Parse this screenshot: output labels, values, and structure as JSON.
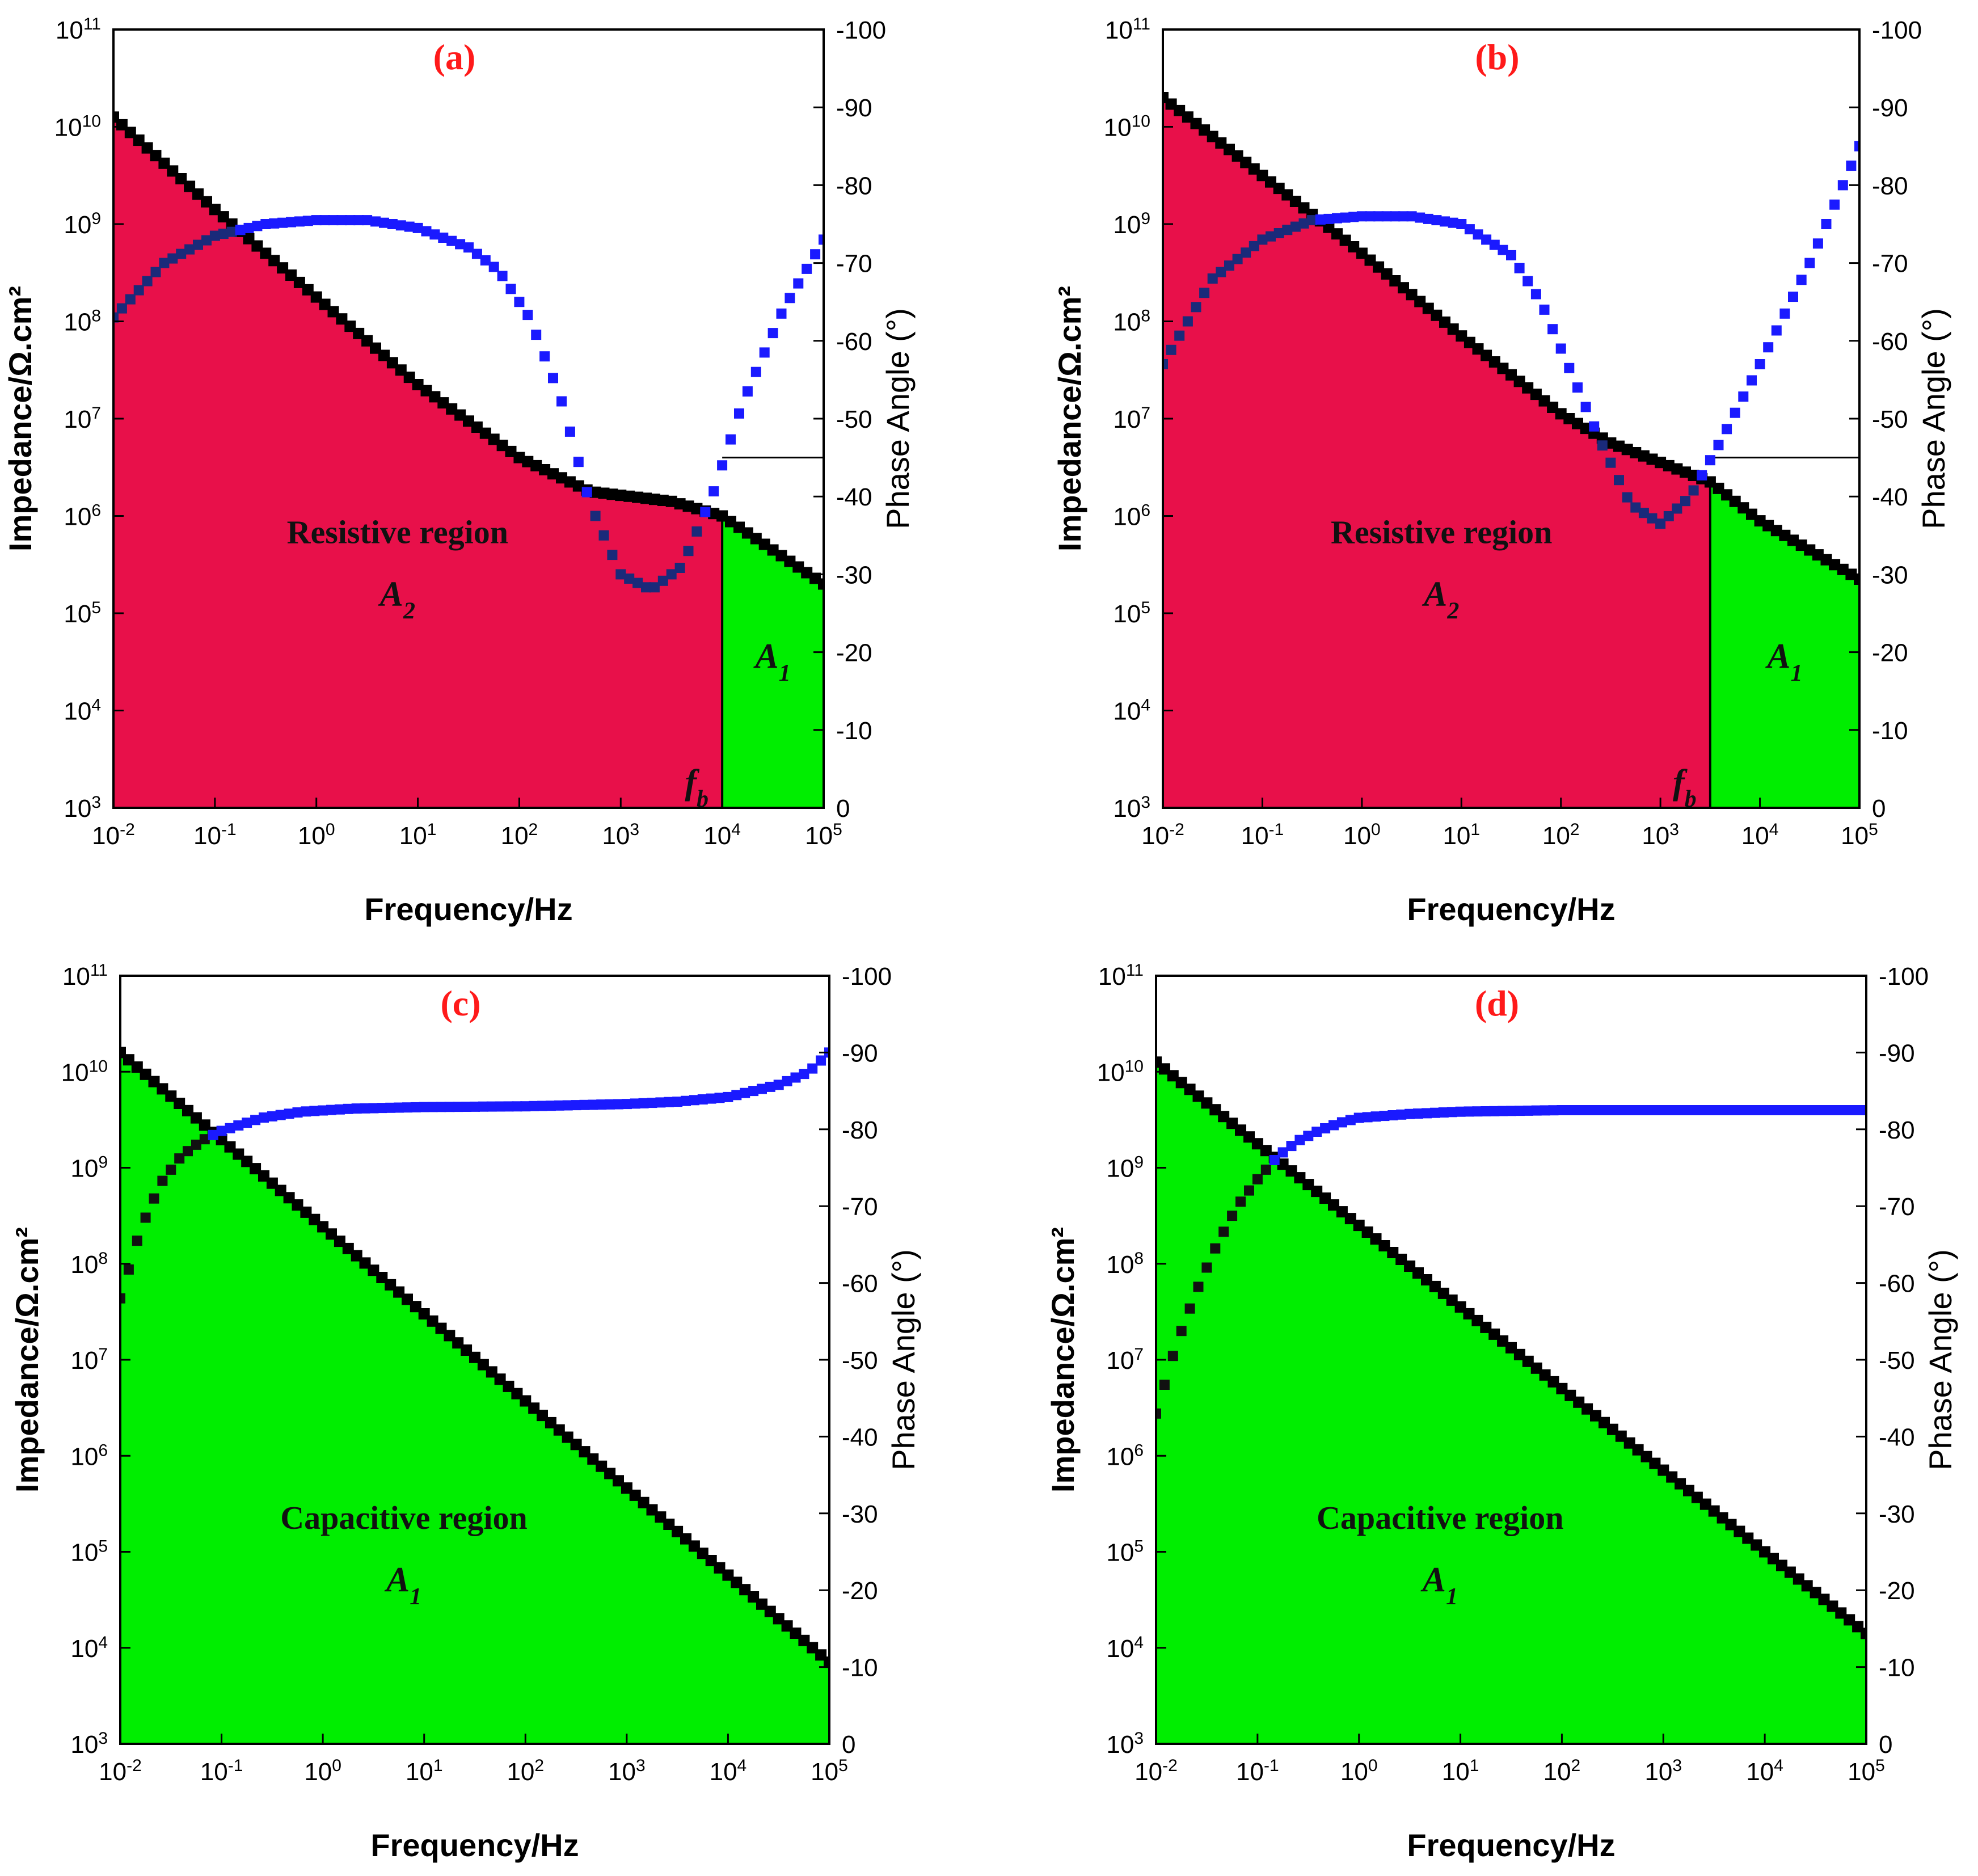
{
  "chart_data": [
    {
      "type": "line",
      "panel_label": "(a)",
      "xlabel": "Frequency/Hz",
      "ylabel": "Impedance/Ω.cm²",
      "ylabel_right": "Phase Angle (°)",
      "xlim_log10": [
        -2,
        5
      ],
      "ylim_log10": [
        3,
        11
      ],
      "ylim_right": [
        0,
        -100
      ],
      "x_ticks": [
        "10-2",
        "10-1",
        "100",
        "101",
        "102",
        "103",
        "104",
        "105"
      ],
      "y_ticks": [
        "103",
        "104",
        "105",
        "106",
        "107",
        "108",
        "109",
        "1010",
        "1011"
      ],
      "y_right_ticks": [
        "0",
        "-10",
        "-20",
        "-30",
        "-40",
        "-50",
        "-60",
        "-70",
        "-80",
        "-90",
        "-100"
      ],
      "series": [
        {
          "name": "|Z|",
          "color": "#000000",
          "log10f": [
            -2,
            -1,
            -0.5,
            0,
            1,
            2,
            2.7,
            3.5,
            4,
            5
          ],
          "log10z": [
            10.1,
            9.15,
            8.7,
            8.25,
            7.35,
            6.6,
            6.25,
            6.15,
            6.0,
            5.3
          ]
        },
        {
          "name": "Phase",
          "color": "#1a1aff",
          "log10f": [
            -2,
            -1.5,
            -1,
            -0.5,
            0,
            0.5,
            1,
            1.5,
            1.8,
            2.1,
            2.4,
            2.7,
            3.0,
            3.3,
            3.6,
            3.9,
            4.2,
            4.6,
            5.0
          ],
          "phase": [
            -63,
            -70,
            -73.5,
            -75,
            -75.5,
            -75.5,
            -74.5,
            -72,
            -69,
            -63,
            -53,
            -39,
            -30,
            -28,
            -31,
            -40,
            -52,
            -64,
            -73
          ]
        }
      ],
      "region_title": "Resistive region",
      "region_symbol": "A",
      "region_subscript": "2",
      "green_symbol": "A",
      "green_subscript": "1",
      "boundary_symbol": "f",
      "boundary_subscript": "b",
      "fb_log10": 4.0,
      "fb_log10z": 6.0,
      "fill_resistive": "#e8104a",
      "fill_capacitive": "#00ee00"
    },
    {
      "type": "line",
      "panel_label": "(b)",
      "xlabel": "Frequency/Hz",
      "ylabel": "Impedance/Ω.cm²",
      "ylabel_right": "Phase Angle (°)",
      "xlim_log10": [
        -2,
        5
      ],
      "ylim_log10": [
        3,
        11
      ],
      "ylim_right": [
        0,
        -100
      ],
      "x_ticks": [
        "10-2",
        "10-1",
        "100",
        "101",
        "102",
        "103",
        "104",
        "105"
      ],
      "y_ticks": [
        "103",
        "104",
        "105",
        "106",
        "107",
        "108",
        "109",
        "1010",
        "1011"
      ],
      "y_right_ticks": [
        "0",
        "-10",
        "-20",
        "-30",
        "-40",
        "-50",
        "-60",
        "-70",
        "-80",
        "-90",
        "-100"
      ],
      "series": [
        {
          "name": "|Z|",
          "color": "#000000",
          "log10f": [
            -2,
            -1,
            0,
            1,
            2,
            2.5,
            3,
            3.5,
            4,
            5
          ],
          "log10z": [
            10.3,
            9.5,
            8.7,
            7.85,
            7.05,
            6.75,
            6.55,
            6.35,
            5.95,
            5.35
          ]
        },
        {
          "name": "Phase",
          "color": "#1a1aff",
          "log10f": [
            -2,
            -1.5,
            -1,
            -0.5,
            0,
            0.5,
            1,
            1.5,
            1.8,
            2.1,
            2.4,
            2.7,
            3.0,
            3.3,
            3.6,
            4.0,
            4.5,
            5.0
          ],
          "phase": [
            -57,
            -68,
            -73,
            -75.5,
            -76,
            -76,
            -75,
            -71,
            -65,
            -56,
            -47,
            -39,
            -36.5,
            -40,
            -47,
            -57,
            -70,
            -85
          ]
        }
      ],
      "region_title": "Resistive region",
      "region_symbol": "A",
      "region_subscript": "2",
      "green_symbol": "A",
      "green_subscript": "1",
      "boundary_symbol": "f",
      "boundary_subscript": "b",
      "fb_log10": 3.5,
      "fb_log10z": 6.35,
      "fill_resistive": "#e8104a",
      "fill_capacitive": "#00ee00"
    },
    {
      "type": "line",
      "panel_label": "(c)",
      "xlabel": "Frequency/Hz",
      "ylabel": "Impedance/Ω.cm²",
      "ylabel_right": "Phase Angle (°)",
      "xlim_log10": [
        -2,
        5
      ],
      "ylim_log10": [
        3,
        11
      ],
      "ylim_right": [
        0,
        -100
      ],
      "x_ticks": [
        "10-2",
        "10-1",
        "100",
        "101",
        "102",
        "103",
        "104",
        "105"
      ],
      "y_ticks": [
        "103",
        "104",
        "105",
        "106",
        "107",
        "108",
        "109",
        "1010",
        "1011"
      ],
      "y_right_ticks": [
        "0",
        "-10",
        "-20",
        "-30",
        "-40",
        "-50",
        "-60",
        "-70",
        "-80",
        "-90",
        "-100"
      ],
      "series": [
        {
          "name": "|Z|",
          "color": "#000000",
          "log10f": [
            -2,
            5
          ],
          "log10z": [
            10.2,
            3.85
          ]
        },
        {
          "name": "Phase",
          "color": "#1a1aff",
          "log10f": [
            -2,
            -1.8,
            -1.6,
            -1.4,
            -1.2,
            -1,
            -0.6,
            -0.2,
            0.3,
            1,
            2,
            3,
            3.5,
            4,
            4.5,
            4.8,
            5
          ],
          "phase": [
            -58,
            -67,
            -73,
            -76.5,
            -78.5,
            -79.8,
            -81.5,
            -82.3,
            -82.7,
            -82.9,
            -83,
            -83.3,
            -83.6,
            -84.2,
            -85.8,
            -87.5,
            -90
          ]
        }
      ],
      "region_title": "Capacitive region",
      "region_symbol": "A",
      "region_subscript": "1",
      "fill_capacitive": "#00ee00"
    },
    {
      "type": "line",
      "panel_label": "(d)",
      "xlabel": "Frequency/Hz",
      "ylabel": "Impedance/Ω.cm²",
      "ylabel_right": "Phase Angle (°)",
      "xlim_log10": [
        -2,
        5
      ],
      "ylim_log10": [
        3,
        11
      ],
      "ylim_right": [
        0,
        -100
      ],
      "x_ticks": [
        "10-2",
        "10-1",
        "100",
        "101",
        "102",
        "103",
        "104",
        "105"
      ],
      "y_ticks": [
        "103",
        "104",
        "105",
        "106",
        "107",
        "108",
        "109",
        "1010",
        "1011"
      ],
      "y_right_ticks": [
        "0",
        "-10",
        "-20",
        "-30",
        "-40",
        "-50",
        "-60",
        "-70",
        "-80",
        "-90",
        "-100"
      ],
      "series": [
        {
          "name": "|Z|",
          "color": "#000000",
          "log10f": [
            -2,
            5
          ],
          "log10z": [
            10.1,
            4.15
          ]
        },
        {
          "name": "Phase",
          "color": "#1a1aff",
          "log10f": [
            -2,
            -1.8,
            -1.6,
            -1.4,
            -1.2,
            -1,
            -0.8,
            -0.6,
            -0.4,
            -0.2,
            0,
            0.5,
            1,
            2,
            3,
            4,
            5
          ],
          "phase": [
            -43,
            -52,
            -59,
            -65,
            -70,
            -73.5,
            -76.5,
            -78.5,
            -79.8,
            -80.8,
            -81.5,
            -82,
            -82.3,
            -82.5,
            -82.5,
            -82.5,
            -82.5
          ]
        }
      ],
      "region_title": "Capacitive region",
      "region_symbol": "A",
      "region_subscript": "1",
      "fill_capacitive": "#00ee00"
    }
  ]
}
